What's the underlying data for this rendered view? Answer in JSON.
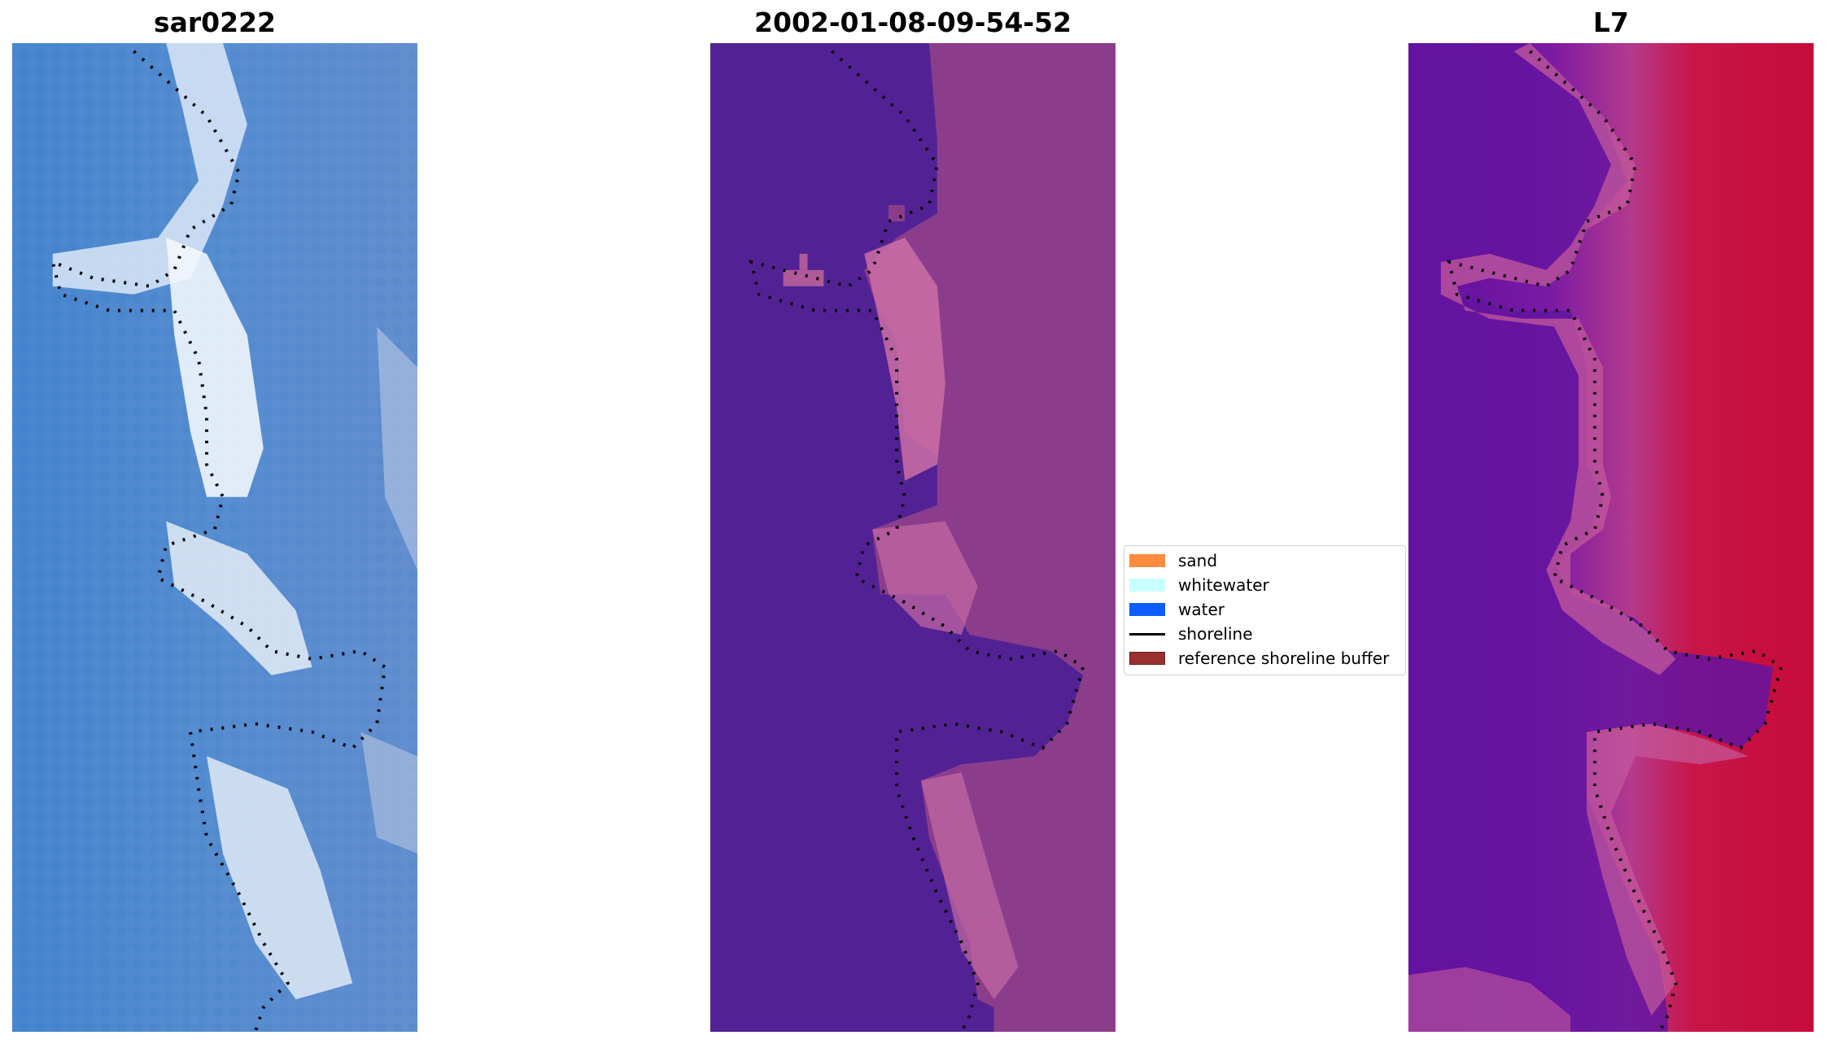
{
  "panels": [
    {
      "title": "sar0222"
    },
    {
      "title": "2002-01-08-09-54-52"
    },
    {
      "title": "L7"
    }
  ],
  "legend": {
    "items": [
      {
        "label": "sand",
        "color": "#ff8c3f",
        "kind": "patch"
      },
      {
        "label": "whitewater",
        "color": "#c8ffff",
        "kind": "patch"
      },
      {
        "label": "water",
        "color": "#0d5cff",
        "kind": "patch"
      },
      {
        "label": "shoreline",
        "color": "#000000",
        "kind": "line"
      },
      {
        "label": "reference shoreline buffer",
        "color": "#9b2f2f",
        "kind": "patch"
      }
    ]
  },
  "colors": {
    "rgb_water": "#4a86cc",
    "rgb_surf": "#eef3fb",
    "classified_water": "#522295",
    "classified_land": "#8a3a8a",
    "classified_beach": "#d070a8",
    "mndwi_water": "#6a1aa0",
    "mndwi_land": "#c8103a",
    "shoreline_dots": "#000000"
  }
}
